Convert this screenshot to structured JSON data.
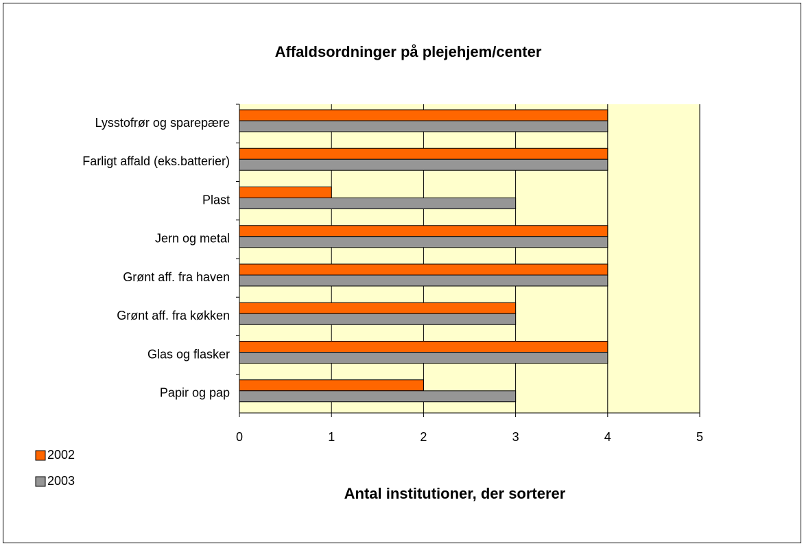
{
  "chart_data": {
    "type": "bar",
    "orientation": "horizontal",
    "title": "Affaldsordninger på plejehjem/center",
    "x_label": "Antal institutioner, der sorterer",
    "categories": [
      "Lysstofrør og sparepære",
      "Farligt affald (eks.batterier)",
      "Plast",
      "Jern og metal",
      "Grønt aff. fra haven",
      "Grønt aff. fra køkken",
      "Glas og flasker",
      "Papir og pap"
    ],
    "series": [
      {
        "name": "2002",
        "color": "#ff6600",
        "values": [
          4,
          4,
          1,
          4,
          4,
          3,
          4,
          2
        ]
      },
      {
        "name": "2003",
        "color": "#969696",
        "values": [
          4,
          4,
          3,
          4,
          4,
          3,
          4,
          3
        ]
      }
    ],
    "xlim": [
      0,
      5
    ],
    "xticks": [
      0,
      1,
      2,
      3,
      4,
      5
    ],
    "grid": true,
    "legend": "bottom-left"
  }
}
